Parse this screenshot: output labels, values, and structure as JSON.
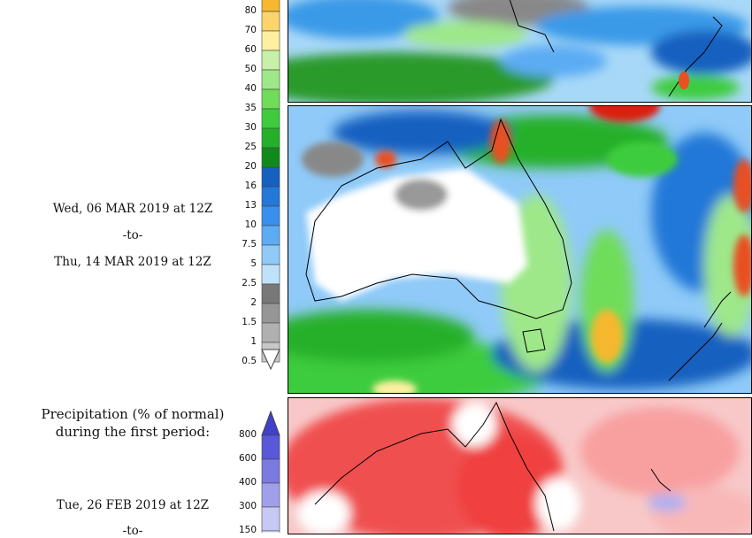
{
  "period2": {
    "from": "Wed, 06 MAR 2019 at 12Z",
    "sep": "-to-",
    "to": "Thu, 14 MAR 2019 at 12Z"
  },
  "precip_scale": {
    "labels": [
      "80",
      "70",
      "60",
      "50",
      "40",
      "35",
      "30",
      "25",
      "20",
      "16",
      "13",
      "10",
      "7.5",
      "5",
      "2.5",
      "2",
      "1.5",
      "1",
      "0.5"
    ],
    "colors": [
      "#f5b82e",
      "#fbd56a",
      "#fdf0a0",
      "#c8f0a8",
      "#9ee88a",
      "#6fdd5a",
      "#3ecc3e",
      "#25b02a",
      "#118a1c",
      "#1660c0",
      "#2478d8",
      "#3890ec",
      "#5cacf4",
      "#8fcaf8",
      "#bfe2fa",
      "#787878",
      "#969696",
      "#b0b0b0",
      "#c8c8c8"
    ],
    "bottom_label": "0.5"
  },
  "pct_normal": {
    "title_line1": "Precipitation (% of normal)",
    "title_line2": "during the first period:",
    "labels": [
      "800",
      "600",
      "400",
      "300",
      "150"
    ],
    "colors": [
      "#5858d8",
      "#7a7ae0",
      "#a0a0ea",
      "#c8c8f4",
      "#e8e8fa"
    ],
    "from": "Tue, 26 FEB 2019 at 12Z",
    "sep": "-to-"
  }
}
